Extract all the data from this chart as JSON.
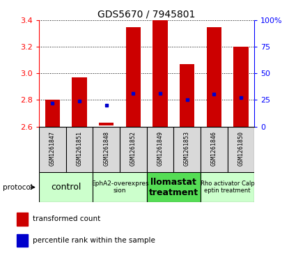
{
  "title": "GDS5670 / 7945801",
  "samples": [
    "GSM1261847",
    "GSM1261851",
    "GSM1261848",
    "GSM1261852",
    "GSM1261849",
    "GSM1261853",
    "GSM1261846",
    "GSM1261850"
  ],
  "bar_bottoms": [
    2.6,
    2.6,
    2.61,
    2.6,
    2.6,
    2.6,
    2.6,
    2.6
  ],
  "bar_tops": [
    2.8,
    2.97,
    2.63,
    3.35,
    3.4,
    3.07,
    3.35,
    3.2
  ],
  "percentile_values": [
    2.775,
    2.792,
    2.762,
    2.848,
    2.848,
    2.8,
    2.845,
    2.818
  ],
  "ylim": [
    2.6,
    3.4
  ],
  "yticks_left": [
    2.6,
    2.8,
    3.0,
    3.2,
    3.4
  ],
  "yticks_right": [
    0,
    25,
    50,
    75,
    100
  ],
  "bar_color": "#cc0000",
  "dot_color": "#0000cc",
  "groups": [
    {
      "label": "control",
      "indices": [
        0,
        1
      ],
      "color": "#ccffcc",
      "fontsize": 9,
      "bold": false
    },
    {
      "label": "EphA2-overexpres\nsion",
      "indices": [
        2,
        3
      ],
      "color": "#ccffcc",
      "fontsize": 6.5,
      "bold": false
    },
    {
      "label": "llomastat\ntreatment",
      "indices": [
        4,
        5
      ],
      "color": "#55dd55",
      "fontsize": 9,
      "bold": true
    },
    {
      "label": "Rho activator Calp\neptin treatment",
      "indices": [
        6,
        7
      ],
      "color": "#ccffcc",
      "fontsize": 6,
      "bold": false
    }
  ],
  "legend_bar_label": "transformed count",
  "legend_dot_label": "percentile rank within the sample",
  "protocol_label": "protocol"
}
